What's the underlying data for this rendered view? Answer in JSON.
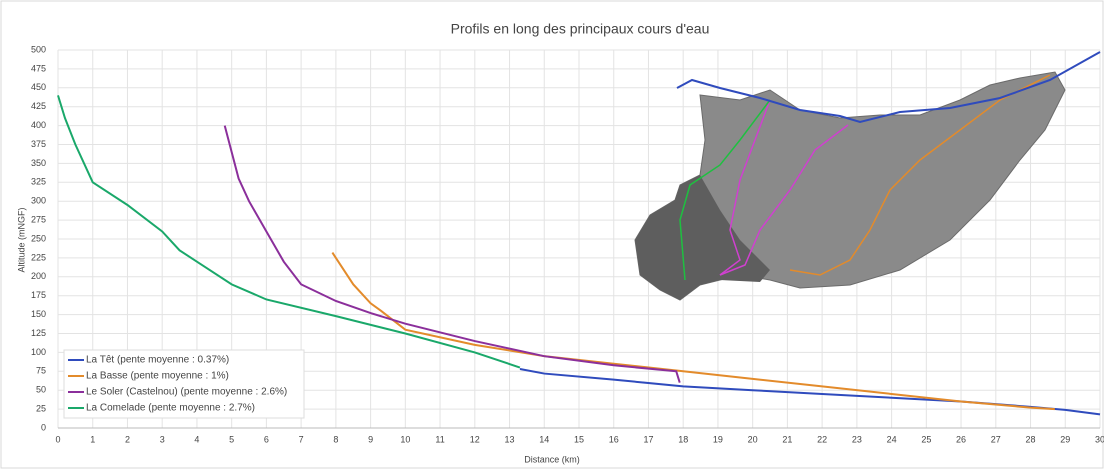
{
  "chart_data": {
    "type": "line",
    "title": "Profils en long des principaux cours d'eau",
    "xlabel": "Distance (km)",
    "ylabel": "Altitude (mNGF)",
    "xlim": [
      0,
      30
    ],
    "ylim": [
      0,
      500
    ],
    "xticks": [
      0,
      1,
      2,
      3,
      4,
      5,
      6,
      7,
      8,
      9,
      10,
      11,
      12,
      13,
      14,
      15,
      16,
      17,
      18,
      19,
      20,
      21,
      22,
      23,
      24,
      25,
      26,
      27,
      28,
      29,
      30
    ],
    "yticks": [
      0,
      25,
      50,
      75,
      100,
      125,
      150,
      175,
      200,
      225,
      250,
      275,
      300,
      325,
      350,
      375,
      400,
      425,
      450,
      475,
      500
    ],
    "grid": true,
    "legend": "lower left",
    "series": [
      {
        "name": "La Têt (pente moyenne : 0.37%)",
        "color": "#2f4bbd",
        "x": [
          13.3,
          14,
          16,
          18,
          20,
          22,
          24,
          26,
          28,
          29,
          30
        ],
        "values": [
          78,
          72,
          64,
          55,
          50,
          45,
          40,
          35,
          28,
          24,
          18
        ]
      },
      {
        "name": "La Basse (pente moyenne : 1%)",
        "color": "#e38b2b",
        "x": [
          7.9,
          8.5,
          9,
          9.3,
          10,
          12,
          14,
          16,
          18,
          20,
          22,
          24,
          26,
          28,
          28.7
        ],
        "values": [
          232,
          190,
          165,
          155,
          130,
          110,
          95,
          85,
          75,
          65,
          55,
          45,
          35,
          27,
          25
        ]
      },
      {
        "name": "Le Soler (Castelnou) (pente moyenne : 2.6%)",
        "color": "#8b2f9b",
        "x": [
          4.8,
          5.2,
          5.5,
          6,
          6.5,
          7,
          8,
          9,
          10,
          12,
          14,
          16,
          17.8,
          17.9
        ],
        "values": [
          400,
          330,
          300,
          260,
          220,
          190,
          168,
          152,
          138,
          115,
          95,
          83,
          75,
          60
        ]
      },
      {
        "name": "La Comelade (pente moyenne : 2.7%)",
        "color": "#1aa86a",
        "x": [
          0,
          0.2,
          0.5,
          1,
          2,
          3,
          3.5,
          4,
          5,
          6,
          8,
          10,
          12,
          13.3
        ],
        "values": [
          440,
          410,
          375,
          325,
          295,
          260,
          235,
          220,
          190,
          170,
          148,
          125,
          100,
          80
        ]
      }
    ]
  }
}
